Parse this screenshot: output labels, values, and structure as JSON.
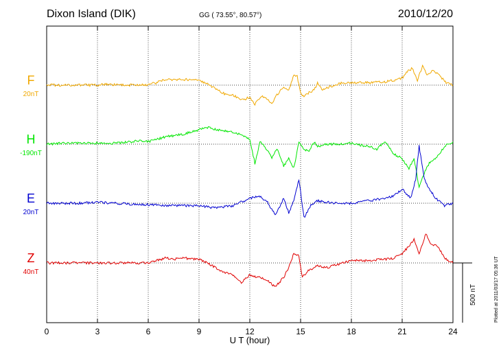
{
  "header": {
    "station": "Dixon Island (DIK)",
    "coords": "GG ( 73.55°,  80.57°)",
    "date": "2010/12/20"
  },
  "plotted_note": "Plotted at 2011/03/17 05:36 UT",
  "colors": {
    "F": "#f0a800",
    "H": "#00e600",
    "E": "#0000d0",
    "Z": "#e00000",
    "frame": "#000000",
    "grid": "#000000"
  },
  "chart_data": {
    "type": "line",
    "xlabel": "U T (hour)",
    "xlim": [
      0,
      24
    ],
    "xticks": [
      0,
      3,
      6,
      9,
      12,
      15,
      18,
      21,
      24
    ],
    "xtick_labels": [
      "0",
      "3",
      "6",
      "9",
      "12",
      "15",
      "18",
      "21",
      "24"
    ],
    "grid": true,
    "scale_bar": {
      "label": "500 nT",
      "value_nT": 500
    },
    "series": [
      {
        "name": "F",
        "scale": "20nT",
        "points": [
          [
            0,
            0
          ],
          [
            1,
            0
          ],
          [
            2,
            0
          ],
          [
            3,
            0
          ],
          [
            3.5,
            0.02
          ],
          [
            4,
            0.01
          ],
          [
            5,
            0
          ],
          [
            5.5,
            0
          ],
          [
            6,
            0.01
          ],
          [
            6.5,
            0.05
          ],
          [
            7,
            0.12
          ],
          [
            7.5,
            0.1
          ],
          [
            8,
            0.12
          ],
          [
            9,
            0.1
          ],
          [
            9.5,
            0.02
          ],
          [
            10,
            -0.08
          ],
          [
            10.5,
            -0.18
          ],
          [
            11,
            -0.2
          ],
          [
            11.5,
            -0.32
          ],
          [
            12,
            -0.25
          ],
          [
            12.3,
            -0.4
          ],
          [
            12.7,
            -0.22
          ],
          [
            13,
            -0.28
          ],
          [
            13.3,
            -0.4
          ],
          [
            13.6,
            -0.2
          ],
          [
            14,
            -0.05
          ],
          [
            14.3,
            -0.1
          ],
          [
            14.6,
            0.2
          ],
          [
            14.8,
            0.18
          ],
          [
            15,
            -0.15
          ],
          [
            15.2,
            -0.25
          ],
          [
            15.5,
            -0.15
          ],
          [
            15.8,
            -0.1
          ],
          [
            16,
            0.05
          ],
          [
            16.3,
            -0.1
          ],
          [
            16.6,
            -0.05
          ],
          [
            17,
            0
          ],
          [
            17.5,
            0.05
          ],
          [
            18,
            0.05
          ],
          [
            19,
            0.05
          ],
          [
            20,
            0.07
          ],
          [
            20.5,
            0.1
          ],
          [
            21,
            0.15
          ],
          [
            21.3,
            0.28
          ],
          [
            21.6,
            0.35
          ],
          [
            21.9,
            0.1
          ],
          [
            22.2,
            0.4
          ],
          [
            22.5,
            0.2
          ],
          [
            22.8,
            0.3
          ],
          [
            23.2,
            0.2
          ],
          [
            23.6,
            0.05
          ],
          [
            24,
            0
          ]
        ]
      },
      {
        "name": "H",
        "scale": "-190nT",
        "points": [
          [
            0,
            0
          ],
          [
            1,
            0.02
          ],
          [
            2,
            0.03
          ],
          [
            3,
            0.02
          ],
          [
            4,
            0.02
          ],
          [
            5,
            0.05
          ],
          [
            5.5,
            0.08
          ],
          [
            6,
            0.05
          ],
          [
            6.5,
            0.1
          ],
          [
            7,
            0.15
          ],
          [
            7.5,
            0.18
          ],
          [
            8,
            0.2
          ],
          [
            9,
            0.3
          ],
          [
            9.5,
            0.35
          ],
          [
            10,
            0.3
          ],
          [
            11,
            0.25
          ],
          [
            11.5,
            0.2
          ],
          [
            12,
            0.1
          ],
          [
            12.3,
            -0.4
          ],
          [
            12.6,
            0.05
          ],
          [
            13,
            -0.1
          ],
          [
            13.3,
            -0.3
          ],
          [
            13.6,
            -0.1
          ],
          [
            14,
            -0.45
          ],
          [
            14.3,
            -0.3
          ],
          [
            14.6,
            -0.5
          ],
          [
            14.9,
            0.05
          ],
          [
            15.2,
            -0.1
          ],
          [
            15.5,
            -0.15
          ],
          [
            15.8,
            0.05
          ],
          [
            16,
            -0.05
          ],
          [
            16.5,
            0
          ],
          [
            17,
            0
          ],
          [
            18,
            0.02
          ],
          [
            19,
            -0.05
          ],
          [
            19.5,
            -0.1
          ],
          [
            20,
            0.05
          ],
          [
            20.5,
            -0.2
          ],
          [
            21,
            -0.3
          ],
          [
            21.4,
            -0.5
          ],
          [
            21.7,
            -0.3
          ],
          [
            22,
            -0.9
          ],
          [
            22.3,
            -0.6
          ],
          [
            22.6,
            -0.4
          ],
          [
            23,
            -0.3
          ],
          [
            23.5,
            -0.05
          ],
          [
            24,
            0.05
          ]
        ]
      },
      {
        "name": "E",
        "scale": "20nT",
        "points": [
          [
            0,
            0
          ],
          [
            1,
            0
          ],
          [
            2,
            0
          ],
          [
            3,
            0.02
          ],
          [
            4,
            0
          ],
          [
            5,
            -0.02
          ],
          [
            6,
            -0.03
          ],
          [
            7,
            -0.05
          ],
          [
            8,
            -0.05
          ],
          [
            9,
            -0.05
          ],
          [
            10,
            -0.1
          ],
          [
            11,
            -0.05
          ],
          [
            12,
            0.1
          ],
          [
            12.5,
            0.15
          ],
          [
            13,
            0.05
          ],
          [
            13.5,
            -0.25
          ],
          [
            14,
            0.1
          ],
          [
            14.3,
            -0.2
          ],
          [
            14.6,
            0.05
          ],
          [
            14.9,
            0.5
          ],
          [
            15.2,
            -0.3
          ],
          [
            15.6,
            -0.05
          ],
          [
            16,
            0.05
          ],
          [
            17,
            0
          ],
          [
            18,
            0
          ],
          [
            19,
            0.05
          ],
          [
            20,
            0.1
          ],
          [
            20.5,
            0.15
          ],
          [
            21,
            0.3
          ],
          [
            21.5,
            0.1
          ],
          [
            21.8,
            0.5
          ],
          [
            22,
            1.2
          ],
          [
            22.3,
            0.5
          ],
          [
            22.6,
            0.3
          ],
          [
            23,
            0.1
          ],
          [
            23.5,
            -0.05
          ],
          [
            24,
            0
          ]
        ]
      },
      {
        "name": "Z",
        "scale": "40nT",
        "points": [
          [
            0,
            0
          ],
          [
            1,
            0
          ],
          [
            2,
            0
          ],
          [
            3,
            0
          ],
          [
            4,
            0
          ],
          [
            5,
            0
          ],
          [
            6,
            0
          ],
          [
            6.5,
            0.05
          ],
          [
            7,
            0.1
          ],
          [
            7.5,
            0.08
          ],
          [
            8,
            0.1
          ],
          [
            9,
            0.08
          ],
          [
            9.5,
            0
          ],
          [
            10,
            -0.1
          ],
          [
            10.5,
            -0.2
          ],
          [
            11,
            -0.25
          ],
          [
            11.5,
            -0.4
          ],
          [
            12,
            -0.25
          ],
          [
            12.5,
            -0.3
          ],
          [
            13,
            -0.35
          ],
          [
            13.5,
            -0.5
          ],
          [
            14,
            -0.3
          ],
          [
            14.3,
            -0.1
          ],
          [
            14.6,
            0.2
          ],
          [
            14.9,
            0.15
          ],
          [
            15.1,
            -0.3
          ],
          [
            15.5,
            -0.15
          ],
          [
            16,
            -0.05
          ],
          [
            16.5,
            -0.1
          ],
          [
            17,
            -0.05
          ],
          [
            17.5,
            0
          ],
          [
            18,
            0.05
          ],
          [
            19,
            0.05
          ],
          [
            20,
            0.08
          ],
          [
            20.5,
            0.1
          ],
          [
            21,
            0.2
          ],
          [
            21.4,
            0.35
          ],
          [
            21.7,
            0.5
          ],
          [
            22,
            0.2
          ],
          [
            22.4,
            0.6
          ],
          [
            22.7,
            0.4
          ],
          [
            23.1,
            0.35
          ],
          [
            23.5,
            0.1
          ],
          [
            24,
            0
          ]
        ]
      }
    ]
  }
}
